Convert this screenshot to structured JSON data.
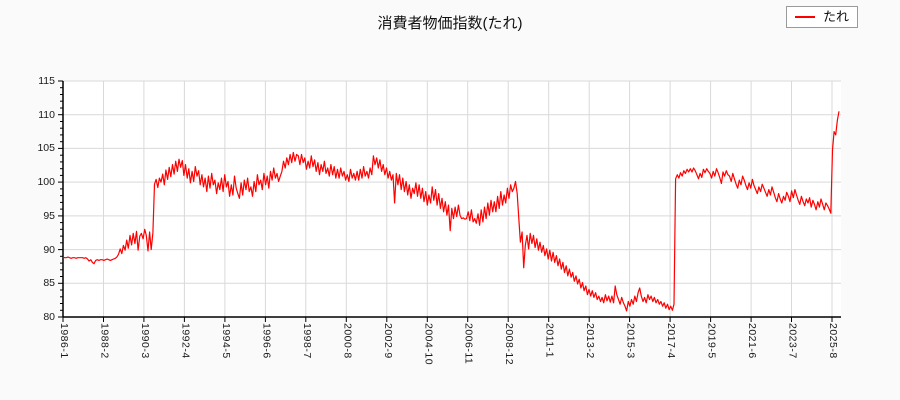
{
  "title": "消費者物価指数(たれ)",
  "legend": {
    "label": "たれ"
  },
  "colors": {
    "line": "#ff0000",
    "grid": "#d9d9d9",
    "axis": "#000000",
    "page_bg": "#fafafa",
    "plot_bg": "#ffffff"
  },
  "chart_data": {
    "type": "line",
    "title": "消費者物価指数(たれ)",
    "series_name": "たれ",
    "legend_position": "top-right",
    "grid": true,
    "x_start": "1986-1",
    "x_end": "2025-8",
    "x_tick_interval_months": 25,
    "x_tick_labels": [
      "1986-1",
      "1988-2",
      "1990-3",
      "1992-4",
      "1994-5",
      "1996-6",
      "1998-7",
      "2000-8",
      "2002-9",
      "2004-10",
      "2006-11",
      "2008-12",
      "2011-1",
      "2013-2",
      "2015-3",
      "2017-4",
      "2019-5",
      "2021-6",
      "2023-7",
      "2025-8"
    ],
    "ylim": [
      80,
      115
    ],
    "y_ticks": [
      80,
      85,
      90,
      95,
      100,
      105,
      110,
      115
    ],
    "values": [
      88.9,
      88.8,
      88.8,
      88.9,
      88.8,
      88.7,
      88.8,
      88.8,
      88.7,
      88.8,
      88.8,
      88.8,
      88.8,
      88.7,
      88.8,
      88.6,
      88.3,
      88.5,
      88.1,
      87.9,
      88.4,
      88.5,
      88.4,
      88.5,
      88.5,
      88.4,
      88.5,
      88.6,
      88.5,
      88.4,
      88.5,
      88.6,
      88.7,
      88.9,
      89.3,
      90.1,
      89.4,
      90.6,
      89.9,
      91.4,
      90.2,
      92.1,
      90.7,
      92.4,
      90.9,
      92.7,
      89.9,
      92.0,
      92.4,
      91.6,
      93.0,
      92.1,
      89.8,
      92.6,
      90.0,
      92.5,
      99.7,
      100.4,
      99.2,
      100.6,
      100.0,
      101.2,
      99.6,
      101.8,
      100.4,
      102.2,
      100.8,
      102.6,
      101.2,
      103.1,
      101.6,
      103.4,
      102.2,
      103.2,
      101.0,
      102.6,
      100.6,
      102.0,
      99.9,
      101.6,
      100.1,
      102.3,
      100.9,
      101.7,
      99.6,
      101.1,
      99.3,
      100.6,
      98.6,
      100.9,
      99.1,
      101.3,
      99.6,
      100.3,
      98.3,
      99.9,
      98.9,
      100.6,
      98.6,
      101.1,
      99.3,
      100.1,
      97.9,
      99.6,
      98.1,
      100.9,
      99.1,
      98.3,
      97.6,
      99.9,
      98.1,
      100.3,
      98.9,
      100.6,
      98.6,
      99.3,
      97.9,
      100.1,
      98.6,
      101.1,
      99.6,
      100.3,
      98.9,
      101.3,
      99.6,
      100.9,
      99.1,
      101.6,
      100.3,
      102.1,
      100.6,
      101.3,
      100.1,
      100.9,
      101.6,
      103.1,
      102.1,
      103.6,
      102.6,
      104.1,
      102.9,
      104.4,
      103.1,
      104.1,
      103.9,
      102.6,
      104.1,
      102.9,
      103.6,
      101.9,
      103.1,
      102.1,
      103.9,
      102.3,
      103.3,
      101.6,
      102.9,
      101.1,
      102.6,
      101.6,
      103.1,
      101.3,
      102.1,
      100.9,
      102.6,
      101.1,
      102.3,
      100.6,
      101.9,
      100.6,
      102.1,
      100.9,
      101.6,
      100.3,
      101.1,
      100.1,
      101.9,
      100.6,
      101.3,
      100.3,
      101.6,
      100.3,
      101.9,
      100.6,
      102.3,
      100.9,
      101.6,
      100.6,
      102.1,
      101.1,
      103.9,
      102.6,
      103.6,
      102.1,
      103.3,
      101.6,
      102.6,
      101.1,
      102.1,
      100.6,
      101.6,
      100.3,
      101.1,
      96.9,
      101.3,
      99.6,
      101.1,
      98.9,
      100.6,
      98.6,
      100.1,
      98.1,
      99.6,
      97.6,
      99.1,
      98.3,
      99.9,
      97.9,
      99.6,
      97.6,
      99.1,
      97.1,
      98.6,
      96.6,
      98.1,
      96.9,
      99.3,
      97.3,
      98.9,
      96.6,
      98.3,
      96.1,
      97.6,
      95.6,
      97.1,
      95.1,
      96.6,
      92.8,
      96.1,
      94.6,
      96.3,
      94.9,
      96.6,
      95.1,
      94.6,
      94.7,
      94.5,
      94.6,
      95.6,
      94.3,
      95.9,
      94.1,
      94.6,
      93.9,
      95.3,
      93.6,
      95.9,
      94.1,
      96.3,
      94.6,
      96.9,
      95.1,
      97.3,
      95.6,
      97.1,
      95.6,
      97.9,
      96.1,
      98.6,
      96.6,
      98.1,
      96.9,
      99.1,
      97.6,
      99.6,
      98.6,
      99.1,
      100.1,
      98.3,
      94.6,
      91.1,
      92.6,
      87.3,
      90.6,
      92.1,
      90.1,
      92.4,
      90.9,
      92.1,
      90.3,
      91.6,
      89.9,
      91.1,
      89.6,
      90.6,
      89.1,
      90.1,
      88.6,
      89.9,
      88.3,
      89.6,
      88.1,
      89.1,
      87.6,
      88.6,
      87.1,
      88.1,
      86.6,
      87.6,
      86.1,
      87.1,
      85.9,
      86.6,
      85.3,
      86.1,
      84.9,
      85.6,
      84.3,
      85.1,
      83.9,
      84.6,
      83.3,
      84.1,
      83.1,
      83.9,
      82.9,
      83.6,
      82.6,
      83.1,
      82.3,
      82.9,
      82.1,
      83.3,
      82.4,
      83.1,
      82.2,
      83.1,
      82.1,
      84.6,
      83.3,
      82.6,
      81.9,
      82.9,
      82.1,
      81.6,
      80.9,
      82.3,
      81.6,
      82.6,
      81.9,
      83.1,
      82.3,
      83.6,
      84.3,
      83.1,
      82.3,
      82.9,
      82.1,
      83.3,
      82.6,
      83.1,
      82.3,
      82.9,
      82.1,
      82.6,
      81.9,
      82.3,
      81.6,
      82.1,
      81.3,
      81.9,
      81.1,
      81.6,
      81.0,
      81.9,
      100.5,
      101.1,
      100.6,
      101.4,
      100.9,
      101.7,
      101.3,
      101.9,
      101.5,
      102.0,
      101.5,
      102.1,
      101.7,
      101.1,
      100.5,
      101.3,
      100.7,
      101.9,
      101.4,
      102.0,
      101.6,
      101.3,
      100.6,
      101.6,
      100.9,
      102.0,
      101.4,
      100.7,
      99.8,
      101.5,
      100.9,
      101.7,
      101.1,
      100.9,
      100.1,
      101.3,
      100.5,
      99.7,
      99.1,
      100.3,
      99.6,
      100.9,
      100.3,
      99.5,
      98.9,
      99.9,
      99.1,
      100.4,
      99.5,
      98.9,
      98.3,
      99.3,
      98.6,
      99.7,
      99.1,
      98.5,
      97.9,
      98.9,
      98.1,
      99.3,
      98.5,
      97.7,
      97.1,
      98.3,
      97.5,
      96.9,
      97.9,
      97.3,
      98.5,
      97.9,
      97.1,
      98.7,
      97.7,
      98.9,
      98.1,
      97.3,
      96.7,
      97.9,
      97.1,
      96.5,
      97.5,
      96.9,
      97.7,
      96.3,
      97.3,
      96.7,
      95.9,
      97.1,
      96.3,
      97.5,
      96.7,
      95.9,
      96.9,
      96.5,
      96.0,
      95.4,
      104.8,
      107.5,
      107.0,
      109.2,
      110.5
    ]
  }
}
